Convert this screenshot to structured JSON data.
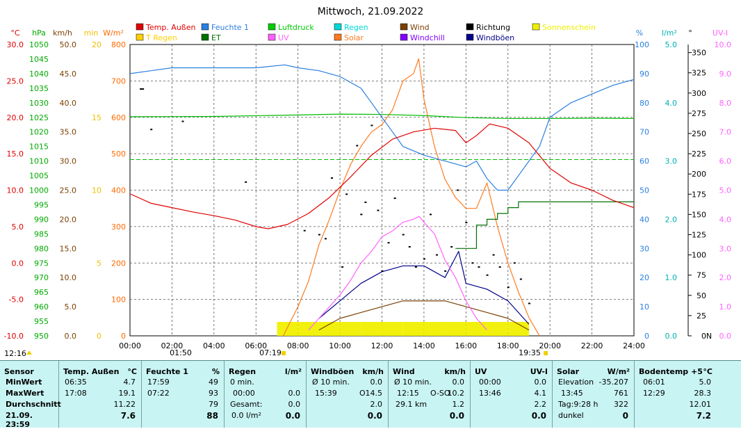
{
  "chart_data": {
    "type": "line",
    "title": "Mittwoch, 21.09.2022",
    "x_ticks": [
      "00:00",
      "02:00",
      "04:00",
      "06:00",
      "08:00",
      "10:00",
      "12:00",
      "14:00",
      "16:00",
      "18:00",
      "20:00",
      "22:00",
      "24:00"
    ],
    "legend": [
      {
        "name": "Temp. Außen",
        "color": "#e00000"
      },
      {
        "name": "Feuchte 1",
        "color": "#2a7fe0"
      },
      {
        "name": "Luftdruck",
        "color": "#00cc00"
      },
      {
        "name": "Regen",
        "color": "#00d8d8"
      },
      {
        "name": "Wind",
        "color": "#7a4000"
      },
      {
        "name": "Richtung",
        "color": "#000000"
      },
      {
        "name": "Sonnenschein",
        "color": "#f0f000"
      },
      {
        "name": "T Regen",
        "color": "#ffd000"
      },
      {
        "name": "ET",
        "color": "#007000"
      },
      {
        "name": "UV",
        "color": "#ff60ff"
      },
      {
        "name": "Solar",
        "color": "#ff7a20"
      },
      {
        "name": "Windchill",
        "color": "#8000ff"
      },
      {
        "name": "Windböen",
        "color": "#00008a"
      }
    ],
    "left_axes": [
      {
        "unit": "°C",
        "color": "#e00000",
        "ticks": [
          "30.0",
          "25.0",
          "20.0",
          "15.0",
          "10.0",
          "5.0",
          "0.0",
          "-5.0",
          "-10.0"
        ]
      },
      {
        "unit": "hPa",
        "color": "#00aa00",
        "ticks": [
          "1050",
          "1045",
          "1040",
          "1035",
          "1030",
          "1025",
          "1020",
          "1015",
          "1010",
          "1005",
          "1000",
          "995",
          "990",
          "985",
          "980",
          "975",
          "970",
          "965",
          "960",
          "955",
          "950"
        ]
      },
      {
        "unit": "km/h",
        "color": "#7a4000",
        "ticks": [
          "50.0",
          "45.0",
          "40.0",
          "35.0",
          "30.0",
          "25.0",
          "20.0",
          "15.0",
          "10.0",
          "5.0",
          "0.0"
        ]
      },
      {
        "unit": "min",
        "color": "#f0c000",
        "ticks": [
          "20",
          "15",
          "10",
          "5",
          "0"
        ]
      },
      {
        "unit": "W/m²",
        "color": "#ff6a00",
        "ticks": [
          "800",
          "700",
          "600",
          "500",
          "400",
          "300",
          "200",
          "100",
          "0"
        ]
      }
    ],
    "right_axes": [
      {
        "unit": "%",
        "color": "#2a7fe0",
        "ticks": [
          "100",
          "90",
          "80",
          "70",
          "60",
          "50",
          "40",
          "30",
          "20",
          "10",
          "0"
        ]
      },
      {
        "unit": "l/m²",
        "color": "#00b0b0",
        "ticks": [
          "5.0",
          "4.0",
          "3.0",
          "2.0",
          "1.0",
          "0.0"
        ]
      },
      {
        "unit": "°",
        "color": "#000000",
        "ticks": [
          "350",
          "325",
          "300",
          "275",
          "250",
          "225",
          "200",
          "175",
          "150",
          "125",
          "100",
          "75",
          "50",
          "25",
          "0"
        ]
      },
      {
        "unit": "UV-I",
        "color": "#ff60ff",
        "ticks": [
          "10.0",
          "9.0",
          "8.0",
          "7.0",
          "6.0",
          "5.0",
          "4.0",
          "3.0",
          "2.0",
          "1.0",
          "0.0"
        ]
      }
    ],
    "markers": {
      "moonrise": "12:16",
      "sunrise": "07:19",
      "moonset": "01:50",
      "sunset": "19:35",
      "north": "N"
    },
    "series": [
      {
        "name": "Temp. Außen",
        "x": [
          0,
          1,
          2,
          3,
          4,
          5,
          6,
          6.58,
          7.5,
          8.5,
          9.5,
          10.5,
          11.5,
          12.5,
          13.5,
          14.5,
          15.5,
          16,
          16.5,
          17.13,
          18,
          19,
          20,
          21,
          22,
          23,
          24
        ],
        "y": [
          9.5,
          8.2,
          7.6,
          7.0,
          6.5,
          5.9,
          5.0,
          4.7,
          5.3,
          6.8,
          9.0,
          11.8,
          14.8,
          17.0,
          18.0,
          18.5,
          18.2,
          16.5,
          17.5,
          19.1,
          18.5,
          16.5,
          13.0,
          11.0,
          10.0,
          8.6,
          7.6
        ]
      },
      {
        "name": "Feuchte 1",
        "x": [
          0,
          1,
          2,
          4,
          6,
          7.37,
          8,
          9,
          10,
          11,
          11.5,
          12,
          12.5,
          13,
          14,
          15,
          16,
          16.5,
          17,
          17.5,
          18,
          18.5,
          19,
          19.5,
          20,
          21,
          22,
          23,
          24
        ],
        "y": [
          90,
          91,
          92,
          92,
          92,
          93,
          92,
          91,
          89,
          85,
          80,
          75,
          70,
          65,
          62,
          60,
          58,
          60,
          54,
          50,
          50,
          55,
          60,
          65,
          75,
          80,
          83,
          86,
          88
        ]
      },
      {
        "name": "Luftdruck",
        "x": [
          0,
          4,
          8,
          10,
          12,
          14,
          16,
          18,
          20,
          22,
          24
        ],
        "y": [
          1025.2,
          1025.3,
          1025.8,
          1026.1,
          1026.0,
          1025.6,
          1024.9,
          1024.6,
          1024.6,
          1024.7,
          1024.6
        ]
      },
      {
        "name": "ET",
        "x": [
          15.5,
          16,
          16.5,
          17,
          17.5,
          18,
          18.5,
          19,
          24
        ],
        "y": [
          1.5,
          1.5,
          1.9,
          2.0,
          2.1,
          2.2,
          2.3,
          2.3,
          2.3
        ]
      },
      {
        "name": "Solar",
        "x": [
          7.3,
          8,
          8.5,
          9,
          9.5,
          10,
          10.5,
          11,
          11.5,
          12,
          12.5,
          13,
          13.5,
          13.75,
          14,
          14.5,
          15,
          15.5,
          16,
          16.5,
          17,
          17.5,
          18,
          18.5,
          19,
          19.5
        ],
        "y": [
          0,
          80,
          150,
          250,
          320,
          400,
          470,
          520,
          560,
          580,
          620,
          700,
          720,
          761,
          650,
          520,
          430,
          380,
          350,
          350,
          420,
          300,
          200,
          120,
          50,
          0
        ]
      },
      {
        "name": "UV",
        "x": [
          8.5,
          9,
          9.5,
          10,
          10.5,
          11,
          11.5,
          12,
          12.5,
          13,
          13.5,
          13.77,
          14,
          14.5,
          15,
          15.5,
          16,
          16.5,
          17
        ],
        "y": [
          0.2,
          0.6,
          1.0,
          1.4,
          1.9,
          2.5,
          2.9,
          3.4,
          3.6,
          3.9,
          4.0,
          4.1,
          3.9,
          3.5,
          2.6,
          2.0,
          1.2,
          0.6,
          0.2
        ]
      },
      {
        "name": "Windböen",
        "x": [
          9,
          10,
          11,
          12,
          13,
          14,
          15,
          15.65,
          16,
          17,
          18,
          19
        ],
        "y": [
          3,
          6,
          9,
          11,
          12,
          12,
          10,
          14.5,
          9,
          8,
          6,
          2
        ]
      },
      {
        "name": "Wind",
        "x": [
          9,
          10,
          11,
          12,
          13,
          14,
          15,
          16,
          17,
          18,
          19
        ],
        "y": [
          1,
          3,
          4,
          5,
          6,
          6,
          6,
          5,
          4,
          3,
          1
        ]
      },
      {
        "name": "Richtung",
        "x": [
          0.5,
          0.6,
          1.0,
          2.5,
          5.5,
          8.3,
          9.0,
          9.3,
          9.6,
          10.1,
          10.3,
          10.8,
          11.0,
          11.2,
          11.5,
          11.8,
          12.0,
          12.3,
          12.6,
          13.0,
          13.3,
          13.6,
          14.0,
          14.3,
          14.6,
          15.0,
          15.3,
          15.6,
          16.0,
          16.3,
          16.6,
          17.0,
          17.3,
          17.6,
          18.0,
          18.3,
          18.6,
          19.0
        ],
        "y": [
          305,
          305,
          255,
          265,
          190,
          130,
          125,
          120,
          195,
          85,
          175,
          235,
          150,
          165,
          260,
          155,
          80,
          115,
          170,
          125,
          110,
          85,
          95,
          150,
          100,
          80,
          110,
          180,
          140,
          90,
          85,
          75,
          100,
          85,
          60,
          90,
          70,
          40
        ]
      },
      {
        "name": "Sonnenschein",
        "x": [
          7.5,
          8.5,
          9.5,
          10.5,
          11.5,
          12.5,
          13.5,
          14.5,
          15.5,
          16.5,
          17.5,
          18.5
        ],
        "y": [
          1,
          1,
          1,
          1,
          1,
          1,
          1,
          1,
          1,
          1,
          1,
          1
        ]
      }
    ]
  },
  "markers_text": {
    "moonrise": "12:16",
    "sunrise": "07:19",
    "moonset": "01:50",
    "sunset": "19:35",
    "north": "N"
  },
  "summary": {
    "sensor": {
      "header": "Sensor",
      "rows": [
        "MinWert",
        "MaxWert",
        "Durchschnitt",
        "21.09. 23:59"
      ]
    },
    "temp": {
      "header": "Temp. Außen",
      "unit": "°C",
      "r1_time": "06:35",
      "r1_val": "4.7",
      "r2_time": "17:08",
      "r2_val": "19.1",
      "r3_val": "11.22",
      "r4_val": "7.6"
    },
    "feuchte": {
      "header": "Feuchte 1",
      "unit": "%",
      "r1_time": "17:59",
      "r1_val": "49",
      "r2_time": "07:22",
      "r2_val": "93",
      "r3_val": "79",
      "r4_val": "88"
    },
    "regen": {
      "header": "Regen",
      "unit": "l/m²",
      "r1_label": "0 min.",
      "r2_time": "00:00",
      "r2_val": "0.0",
      "r3_label": "Gesamt:",
      "r3_val": "0.0",
      "r4_label": "0.0 l/m²",
      "r4_val": "0.0"
    },
    "boeen": {
      "header": "Windböen",
      "unit": "km/h",
      "r1_label": "Ø 10 min.",
      "r1_val": "0.0",
      "r2_time": "15:39",
      "r2_dir": "O",
      "r2_val": "14.5",
      "r3_val": "2.0",
      "r4_val": "0.0"
    },
    "wind": {
      "header": "Wind",
      "unit": "km/h",
      "r1_label": "Ø 10 min.",
      "r1_val": "0.0",
      "r2_time": "12:15",
      "r2_dir": "O-SO",
      "r2_val": "10.2",
      "r3_label": "29.1 km",
      "r3_val": "1.2",
      "r4_val": "0.0"
    },
    "uv": {
      "header": "UV",
      "unit": "UV-I",
      "r1_time": "00:00",
      "r1_val": "0.0",
      "r2_time": "13:46",
      "r2_val": "4.1",
      "r3_val": "2.2",
      "r4_val": "0.0"
    },
    "solar": {
      "header": "Solar",
      "unit": "W/m²",
      "r1_label": "Elevation",
      "r1_val": "-35.207",
      "r2_time": "13:45",
      "r2_val": "761",
      "r3_label": "Tag:9:28 h",
      "r3_val": "322",
      "r4_label": "dunkel",
      "r4_val": "0"
    },
    "boden": {
      "header": "Bodentemp +5",
      "unit": "°C",
      "r1_time": "06:01",
      "r1_val": "5.0",
      "r2_time": "12:29",
      "r2_val": "28.3",
      "r3_val": "12.01",
      "r4_val": "7.2"
    }
  }
}
